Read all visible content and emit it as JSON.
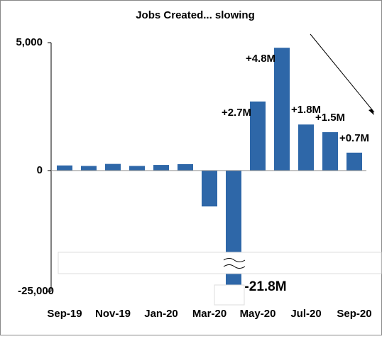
{
  "chart_data": {
    "type": "bar",
    "title": "Jobs Created... slowing",
    "categories": [
      "Sep-19",
      null,
      "Nov-19",
      null,
      "Jan-20",
      null,
      "Mar-20",
      null,
      "May-20",
      null,
      "Jul-20",
      null,
      "Sep-20"
    ],
    "values": [
      200,
      180,
      260,
      180,
      220,
      250,
      -1400,
      -21800,
      2700,
      4800,
      1800,
      1500,
      700
    ],
    "value_labels": [
      null,
      null,
      null,
      null,
      null,
      null,
      null,
      "-21.8M",
      "+2.7M",
      "+4.8M",
      "+1.8M",
      "+1.5M",
      "+0.7M"
    ],
    "color": "#2e67a8",
    "ylim": [
      -25000,
      5000
    ],
    "yticks": [
      {
        "value": 5000,
        "label": "5,000"
      },
      0,
      {
        "value": -25000,
        "label": "-25,000"
      }
    ],
    "axis_break": true,
    "grid": false
  }
}
